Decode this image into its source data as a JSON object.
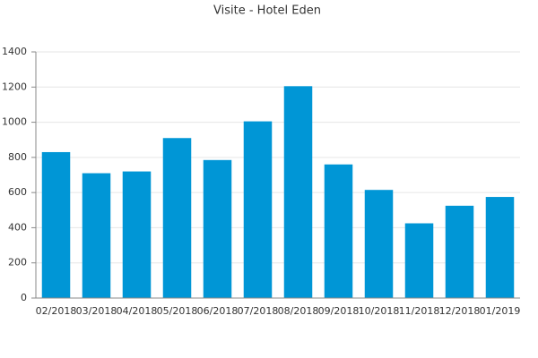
{
  "chart_data": {
    "type": "bar",
    "title": "Visite - Hotel Eden",
    "categories": [
      "02/2018",
      "03/2018",
      "04/2018",
      "05/2018",
      "06/2018",
      "07/2018",
      "08/2018",
      "09/2018",
      "10/2018",
      "11/2018",
      "12/2018",
      "01/2019"
    ],
    "values": [
      830,
      710,
      720,
      910,
      785,
      1005,
      1205,
      760,
      615,
      425,
      525,
      575
    ],
    "color": "#0096d6",
    "ylim": [
      0,
      1400
    ],
    "yticks": [
      0,
      200,
      400,
      600,
      800,
      1000,
      1200,
      1400
    ],
    "grid": true
  }
}
